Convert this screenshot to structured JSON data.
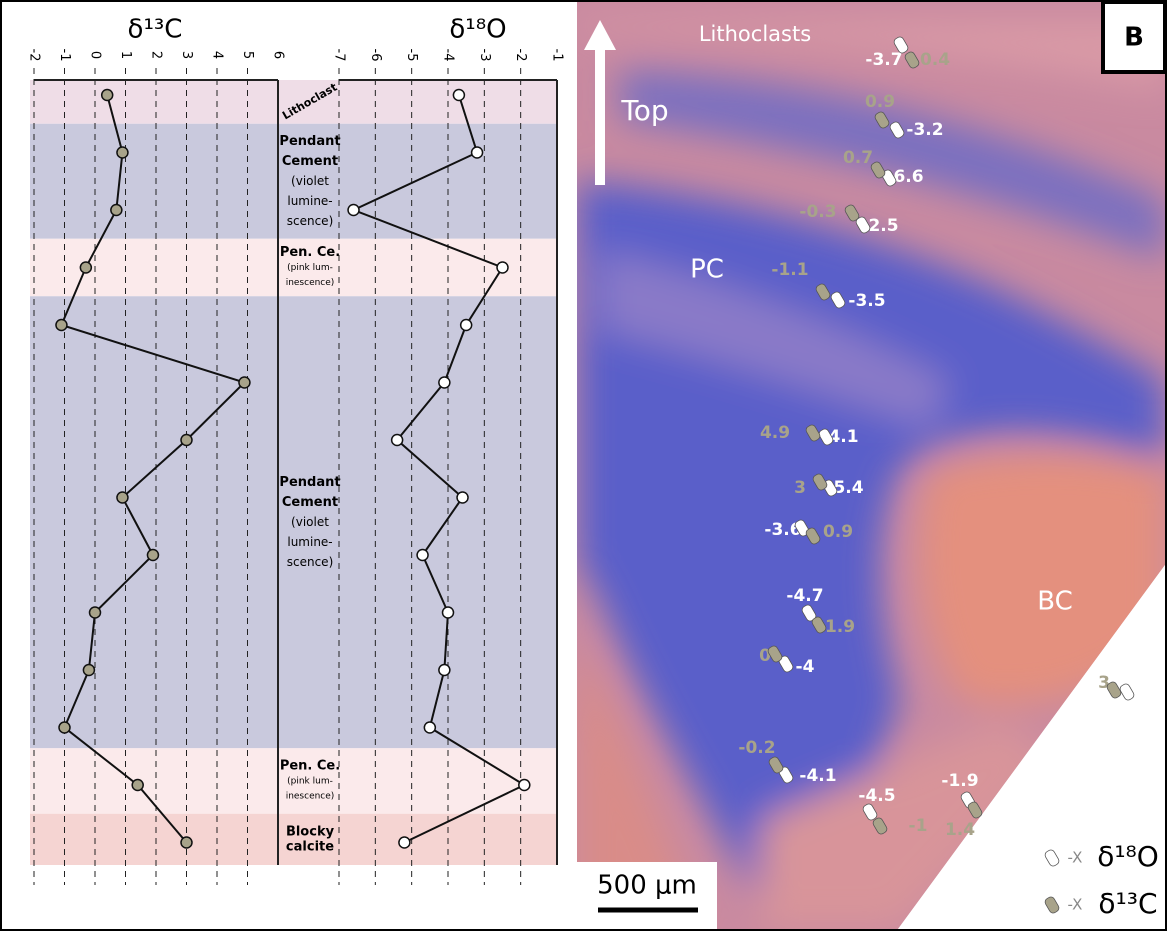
{
  "chart_data": [
    {
      "type": "line",
      "title": "δ¹³C",
      "xlim": [
        -2,
        6
      ],
      "xticks": [
        -2,
        -1,
        0,
        1,
        2,
        3,
        4,
        5,
        6
      ],
      "series": [
        {
          "name": "δ¹³C",
          "color": "#a8a38a",
          "values": [
            0.4,
            0.9,
            0.7,
            -0.3,
            -1.1,
            4.9,
            3,
            0.9,
            1.9,
            0,
            -0.2,
            -1,
            1.4,
            3
          ]
        }
      ]
    },
    {
      "type": "line",
      "title": "δ¹⁸O",
      "xlim": [
        -7,
        -1
      ],
      "xticks": [
        -7,
        -6,
        -5,
        -4,
        -3,
        -2,
        -1
      ],
      "series": [
        {
          "name": "δ¹⁸O",
          "color": "#ffffff",
          "values": [
            -3.7,
            -3.2,
            -6.6,
            -2.5,
            -3.5,
            -4.1,
            -5.4,
            -3.6,
            -4.7,
            -4,
            -4.1,
            -4.5,
            -1.9,
            -5.2
          ]
        }
      ]
    }
  ],
  "zones": [
    {
      "lines": [
        "Lithoclast"
      ],
      "color": "#efdde7"
    },
    {
      "lines": [
        "Pendant",
        "Cement",
        "(violet",
        "lumine-",
        "scence)"
      ],
      "color": "#c9c9dd"
    },
    {
      "lines": [
        "Pen. Ce.",
        "(pink lum-",
        "inescence)"
      ],
      "color": "#fbeaeb"
    },
    {
      "lines": [
        "Pendant",
        "Cement",
        "(violet",
        "lumine-",
        "scence)"
      ],
      "color": "#c9c9dd"
    },
    {
      "lines": [
        "Pen. Ce.",
        "(pink lum-",
        "inescence)"
      ],
      "color": "#fbeaeb"
    },
    {
      "lines": [
        "Blocky",
        "calcite"
      ],
      "color": "#f5d4d2"
    }
  ],
  "photo": {
    "panel": "B",
    "labels": [
      "Lithoclasts",
      "Top",
      "PC",
      "BC"
    ],
    "scale_bar": "500 μm",
    "legend_key": "-X"
  }
}
